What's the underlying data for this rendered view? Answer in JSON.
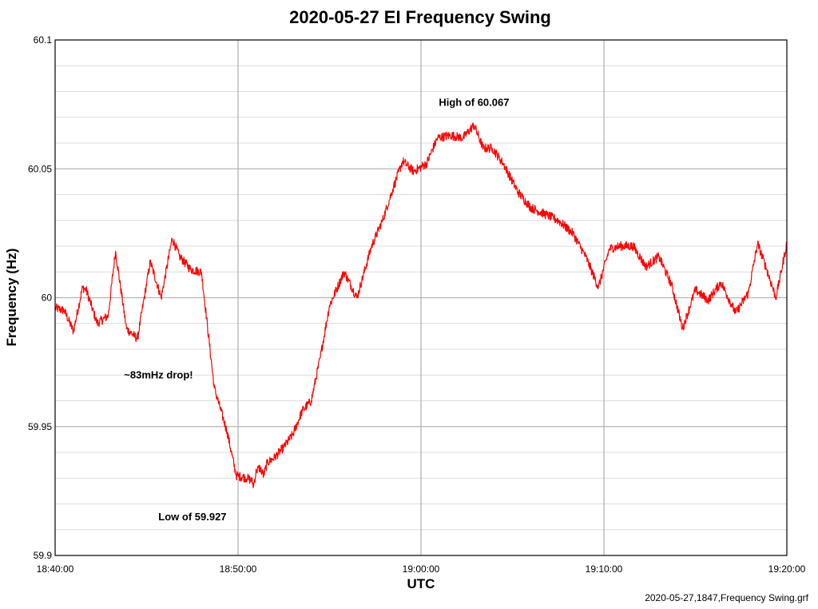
{
  "chart_data": {
    "type": "line",
    "title": "2020-05-27 EI Frequency Swing",
    "xlabel": "UTC",
    "ylabel": "Frequency (Hz)",
    "footer": "2020-05-27,1847,Frequency Swing.grf",
    "x_ticks": [
      "18:40:00",
      "18:50:00",
      "19:00:00",
      "19:10:00",
      "19:20:00"
    ],
    "y_ticks": [
      "59.9",
      "59.95",
      "60",
      "60.05",
      "60.1"
    ],
    "xlim_minutes": [
      0,
      40
    ],
    "ylim": [
      59.9,
      60.1
    ],
    "grid": true,
    "series_color": "#ff0000",
    "series": [
      {
        "x_minutes": [
          0,
          0.5,
          1.0,
          1.5,
          1.7,
          2.3,
          2.9,
          3.3,
          3.9,
          4.5,
          5.2,
          5.8,
          6.4,
          6.8,
          7.4,
          8.0,
          8.7,
          9.4,
          9.9,
          10.5,
          10.75,
          10.85,
          11.0,
          11.2,
          11.4,
          11.6,
          12.0,
          12.5,
          13.0,
          13.5,
          14.0,
          14.5,
          15.0,
          15.8,
          16.5,
          17.3,
          17.9,
          18.5,
          19.0,
          19.6,
          20.3,
          20.9,
          21.6,
          22.3,
          22.9,
          23.4,
          23.9,
          24.5,
          25.3,
          26.0,
          26.9,
          27.5,
          28.3,
          29.0,
          29.7,
          30.3,
          30.9,
          31.6,
          32.3,
          33.0,
          33.7,
          34.3,
          35.0,
          35.7,
          36.4,
          37.2,
          37.9,
          38.4,
          38.9,
          39.4,
          40.0
        ],
        "y": [
          59.996,
          59.995,
          59.987,
          60.004,
          60.003,
          59.99,
          59.993,
          60.018,
          59.988,
          59.984,
          60.014,
          60.0,
          60.023,
          60.016,
          60.011,
          60.01,
          59.965,
          59.948,
          59.931,
          59.93,
          59.929,
          59.927,
          59.933,
          59.934,
          59.931,
          59.936,
          59.938,
          59.942,
          59.947,
          59.956,
          59.96,
          59.977,
          59.997,
          60.01,
          60.0,
          60.02,
          60.03,
          60.043,
          60.053,
          60.049,
          60.052,
          60.062,
          60.063,
          60.062,
          60.067,
          60.058,
          60.058,
          60.052,
          60.041,
          60.035,
          60.032,
          60.03,
          60.025,
          60.016,
          60.004,
          60.019,
          60.02,
          60.02,
          60.012,
          60.016,
          60.005,
          59.988,
          60.003,
          59.999,
          60.006,
          59.994,
          60.002,
          60.021,
          60.011,
          60.0,
          60.021
        ]
      }
    ],
    "annotations": [
      {
        "text": "High of 60.067",
        "x_minutes": 22.9,
        "y": 60.067
      },
      {
        "text": "~83mHz drop!",
        "x_minutes": 7.8,
        "y": 59.97
      },
      {
        "text": "Low of 59.927",
        "x_minutes": 7.9,
        "y": 59.927
      }
    ]
  }
}
